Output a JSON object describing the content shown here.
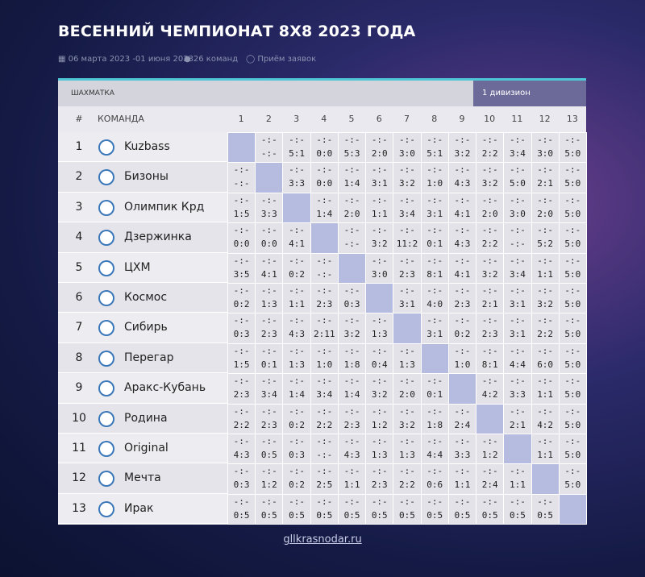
{
  "header": {
    "title": "ВЕСЕННИЙ ЧЕМПИОНАТ 8Х8 2023 ГОДА",
    "dates": "06 марта 2023 -01 июня 2023",
    "teams_count": "26 команд",
    "status": "Приём заявок"
  },
  "table": {
    "section": "ШАХМАТКА",
    "division": "1 дивизион",
    "columns": [
      "#",
      "КОМАНДА",
      "1",
      "2",
      "3",
      "4",
      "5",
      "6",
      "7",
      "8",
      "9",
      "10",
      "11",
      "12",
      "13"
    ],
    "rows": [
      {
        "num": "1",
        "team": "Kuzbass",
        "cells": [
          null,
          [
            "-:-",
            "-:-"
          ],
          [
            "-:-",
            "5:1"
          ],
          [
            "-:-",
            "0:0"
          ],
          [
            "-:-",
            "5:3"
          ],
          [
            "-:-",
            "2:0"
          ],
          [
            "-:-",
            "3:0"
          ],
          [
            "-:-",
            "5:1"
          ],
          [
            "-:-",
            "3:2"
          ],
          [
            "-:-",
            "2:2"
          ],
          [
            "-:-",
            "3:4"
          ],
          [
            "-:-",
            "3:0"
          ],
          [
            "-:-",
            "5:0"
          ]
        ]
      },
      {
        "num": "2",
        "team": "Бизоны",
        "cells": [
          [
            "-:-",
            "-:-"
          ],
          null,
          [
            "-:-",
            "3:3"
          ],
          [
            "-:-",
            "0:0"
          ],
          [
            "-:-",
            "1:4"
          ],
          [
            "-:-",
            "3:1"
          ],
          [
            "-:-",
            "3:2"
          ],
          [
            "-:-",
            "1:0"
          ],
          [
            "-:-",
            "4:3"
          ],
          [
            "-:-",
            "3:2"
          ],
          [
            "-:-",
            "5:0"
          ],
          [
            "-:-",
            "2:1"
          ],
          [
            "-:-",
            "5:0"
          ]
        ]
      },
      {
        "num": "3",
        "team": "Олимпик Крд",
        "cells": [
          [
            "-:-",
            "1:5"
          ],
          [
            "-:-",
            "3:3"
          ],
          null,
          [
            "-:-",
            "1:4"
          ],
          [
            "-:-",
            "2:0"
          ],
          [
            "-:-",
            "1:1"
          ],
          [
            "-:-",
            "3:4"
          ],
          [
            "-:-",
            "3:1"
          ],
          [
            "-:-",
            "4:1"
          ],
          [
            "-:-",
            "2:0"
          ],
          [
            "-:-",
            "3:0"
          ],
          [
            "-:-",
            "2:0"
          ],
          [
            "-:-",
            "5:0"
          ]
        ]
      },
      {
        "num": "4",
        "team": "Дзержинка",
        "cells": [
          [
            "-:-",
            "0:0"
          ],
          [
            "-:-",
            "0:0"
          ],
          [
            "-:-",
            "4:1"
          ],
          null,
          [
            "-:-",
            "-:-"
          ],
          [
            "-:-",
            "3:2"
          ],
          [
            "-:-",
            "11:2"
          ],
          [
            "-:-",
            "0:1"
          ],
          [
            "-:-",
            "4:3"
          ],
          [
            "-:-",
            "2:2"
          ],
          [
            "-:-",
            "-:-"
          ],
          [
            "-:-",
            "5:2"
          ],
          [
            "-:-",
            "5:0"
          ]
        ]
      },
      {
        "num": "5",
        "team": "ЦХМ",
        "cells": [
          [
            "-:-",
            "3:5"
          ],
          [
            "-:-",
            "4:1"
          ],
          [
            "-:-",
            "0:2"
          ],
          [
            "-:-",
            "-:-"
          ],
          null,
          [
            "-:-",
            "3:0"
          ],
          [
            "-:-",
            "2:3"
          ],
          [
            "-:-",
            "8:1"
          ],
          [
            "-:-",
            "4:1"
          ],
          [
            "-:-",
            "3:2"
          ],
          [
            "-:-",
            "3:4"
          ],
          [
            "-:-",
            "1:1"
          ],
          [
            "-:-",
            "5:0"
          ]
        ]
      },
      {
        "num": "6",
        "team": "Космос",
        "cells": [
          [
            "-:-",
            "0:2"
          ],
          [
            "-:-",
            "1:3"
          ],
          [
            "-:-",
            "1:1"
          ],
          [
            "-:-",
            "2:3"
          ],
          [
            "-:-",
            "0:3"
          ],
          null,
          [
            "-:-",
            "3:1"
          ],
          [
            "-:-",
            "4:0"
          ],
          [
            "-:-",
            "2:3"
          ],
          [
            "-:-",
            "2:1"
          ],
          [
            "-:-",
            "3:1"
          ],
          [
            "-:-",
            "3:2"
          ],
          [
            "-:-",
            "5:0"
          ]
        ]
      },
      {
        "num": "7",
        "team": "Сибирь",
        "cells": [
          [
            "-:-",
            "0:3"
          ],
          [
            "-:-",
            "2:3"
          ],
          [
            "-:-",
            "4:3"
          ],
          [
            "-:-",
            "2:11"
          ],
          [
            "-:-",
            "3:2"
          ],
          [
            "-:-",
            "1:3"
          ],
          null,
          [
            "-:-",
            "3:1"
          ],
          [
            "-:-",
            "0:2"
          ],
          [
            "-:-",
            "2:3"
          ],
          [
            "-:-",
            "3:1"
          ],
          [
            "-:-",
            "2:2"
          ],
          [
            "-:-",
            "5:0"
          ]
        ]
      },
      {
        "num": "8",
        "team": "Перегар",
        "cells": [
          [
            "-:-",
            "1:5"
          ],
          [
            "-:-",
            "0:1"
          ],
          [
            "-:-",
            "1:3"
          ],
          [
            "-:-",
            "1:0"
          ],
          [
            "-:-",
            "1:8"
          ],
          [
            "-:-",
            "0:4"
          ],
          [
            "-:-",
            "1:3"
          ],
          null,
          [
            "-:-",
            "1:0"
          ],
          [
            "-:-",
            "8:1"
          ],
          [
            "-:-",
            "4:4"
          ],
          [
            "-:-",
            "6:0"
          ],
          [
            "-:-",
            "5:0"
          ]
        ]
      },
      {
        "num": "9",
        "team": "Аракс-Кубань",
        "cells": [
          [
            "-:-",
            "2:3"
          ],
          [
            "-:-",
            "3:4"
          ],
          [
            "-:-",
            "1:4"
          ],
          [
            "-:-",
            "3:4"
          ],
          [
            "-:-",
            "1:4"
          ],
          [
            "-:-",
            "3:2"
          ],
          [
            "-:-",
            "2:0"
          ],
          [
            "-:-",
            "0:1"
          ],
          null,
          [
            "-:-",
            "4:2"
          ],
          [
            "-:-",
            "3:3"
          ],
          [
            "-:-",
            "1:1"
          ],
          [
            "-:-",
            "5:0"
          ]
        ]
      },
      {
        "num": "10",
        "team": "Родина",
        "cells": [
          [
            "-:-",
            "2:2"
          ],
          [
            "-:-",
            "2:3"
          ],
          [
            "-:-",
            "0:2"
          ],
          [
            "-:-",
            "2:2"
          ],
          [
            "-:-",
            "2:3"
          ],
          [
            "-:-",
            "1:2"
          ],
          [
            "-:-",
            "3:2"
          ],
          [
            "-:-",
            "1:8"
          ],
          [
            "-:-",
            "2:4"
          ],
          null,
          [
            "-:-",
            "2:1"
          ],
          [
            "-:-",
            "4:2"
          ],
          [
            "-:-",
            "5:0"
          ]
        ]
      },
      {
        "num": "11",
        "team": "Original",
        "cells": [
          [
            "-:-",
            "4:3"
          ],
          [
            "-:-",
            "0:5"
          ],
          [
            "-:-",
            "0:3"
          ],
          [
            "-:-",
            "-:-"
          ],
          [
            "-:-",
            "4:3"
          ],
          [
            "-:-",
            "1:3"
          ],
          [
            "-:-",
            "1:3"
          ],
          [
            "-:-",
            "4:4"
          ],
          [
            "-:-",
            "3:3"
          ],
          [
            "-:-",
            "1:2"
          ],
          null,
          [
            "-:-",
            "1:1"
          ],
          [
            "-:-",
            "5:0"
          ]
        ]
      },
      {
        "num": "12",
        "team": "Мечта",
        "cells": [
          [
            "-:-",
            "0:3"
          ],
          [
            "-:-",
            "1:2"
          ],
          [
            "-:-",
            "0:2"
          ],
          [
            "-:-",
            "2:5"
          ],
          [
            "-:-",
            "1:1"
          ],
          [
            "-:-",
            "2:3"
          ],
          [
            "-:-",
            "2:2"
          ],
          [
            "-:-",
            "0:6"
          ],
          [
            "-:-",
            "1:1"
          ],
          [
            "-:-",
            "2:4"
          ],
          [
            "-:-",
            "1:1"
          ],
          null,
          [
            "-:-",
            "5:0"
          ]
        ]
      },
      {
        "num": "13",
        "team": "Ирак",
        "cells": [
          [
            "-:-",
            "0:5"
          ],
          [
            "-:-",
            "0:5"
          ],
          [
            "-:-",
            "0:5"
          ],
          [
            "-:-",
            "0:5"
          ],
          [
            "-:-",
            "0:5"
          ],
          [
            "-:-",
            "0:5"
          ],
          [
            "-:-",
            "0:5"
          ],
          [
            "-:-",
            "0:5"
          ],
          [
            "-:-",
            "0:5"
          ],
          [
            "-:-",
            "0:5"
          ],
          [
            "-:-",
            "0:5"
          ],
          [
            "-:-",
            "0:5"
          ],
          null
        ]
      }
    ]
  },
  "footer": "gllkrasnodar.ru"
}
